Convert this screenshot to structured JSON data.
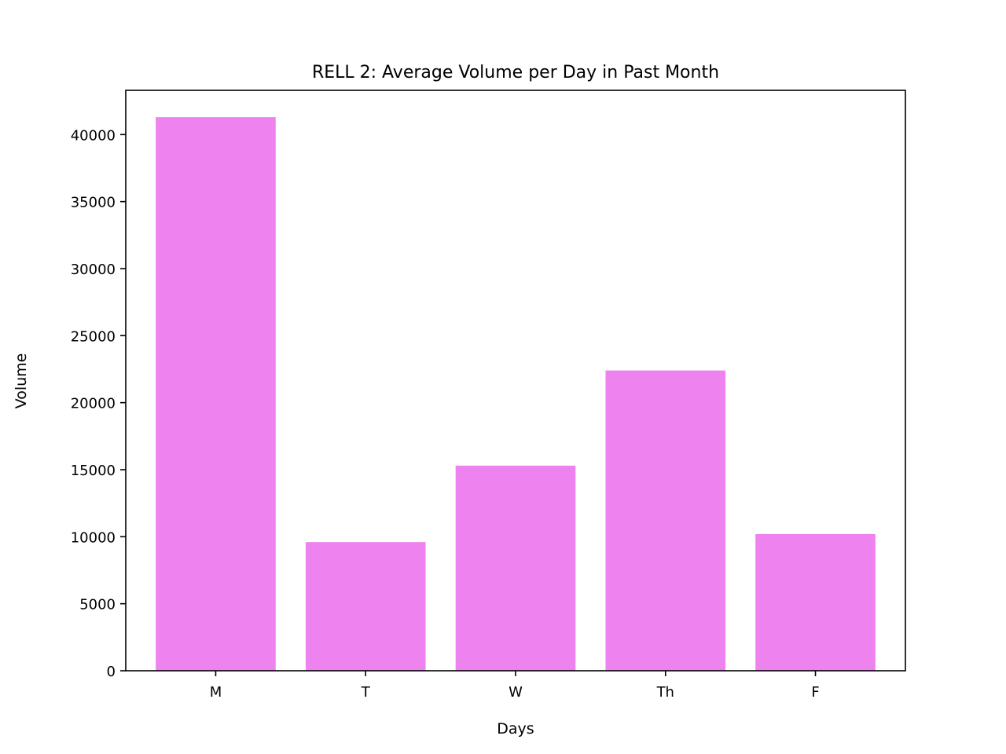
{
  "chart_data": {
    "type": "bar",
    "title": "RELL 2: Average Volume per Day in Past Month",
    "xlabel": "Days",
    "ylabel": "Volume",
    "categories": [
      "M",
      "T",
      "W",
      "Th",
      "F"
    ],
    "values": [
      41300,
      9600,
      15300,
      22400,
      10200
    ],
    "ylim": [
      0,
      43300
    ],
    "yticks": [
      0,
      5000,
      10000,
      15000,
      20000,
      25000,
      30000,
      35000,
      40000
    ],
    "ytick_labels": [
      "0",
      "5000",
      "10000",
      "15000",
      "20000",
      "25000",
      "30000",
      "35000",
      "40000"
    ],
    "grid": false,
    "bar_color": "#ee82ee"
  }
}
